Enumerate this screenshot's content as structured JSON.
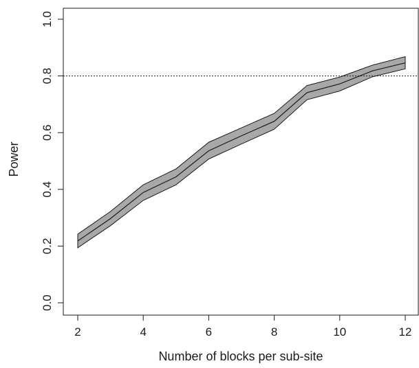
{
  "chart_data": {
    "type": "line",
    "title": "",
    "xlabel": "Number of blocks per sub-site",
    "ylabel": "Power",
    "xlim": [
      2,
      12
    ],
    "ylim": [
      0,
      1
    ],
    "x_ticks": [
      2,
      4,
      6,
      8,
      10,
      12
    ],
    "x_tick_labels": [
      "2",
      "4",
      "6",
      "8",
      "10",
      "12"
    ],
    "y_ticks": [
      0,
      0.2,
      0.4,
      0.6,
      0.8,
      1.0
    ],
    "y_tick_labels": [
      "0.0",
      "0.2",
      "0.4",
      "0.6",
      "0.8",
      "1.0"
    ],
    "grid": false,
    "x": [
      2,
      3,
      4,
      5,
      6,
      7,
      8,
      9,
      10,
      11,
      12
    ],
    "series": [
      {
        "values": [
          0.218,
          0.297,
          0.389,
          0.444,
          0.536,
          0.589,
          0.64,
          0.741,
          0.772,
          0.818,
          0.846
        ],
        "lower": [
          0.194,
          0.272,
          0.361,
          0.416,
          0.507,
          0.56,
          0.612,
          0.716,
          0.747,
          0.797,
          0.825
        ],
        "upper": [
          0.242,
          0.322,
          0.416,
          0.472,
          0.566,
          0.617,
          0.668,
          0.766,
          0.796,
          0.838,
          0.868
        ]
      }
    ],
    "reference_line": {
      "y": 0.8,
      "style": "dotted"
    },
    "colors": {
      "band": "#a8a8a8",
      "line": "#1a1a1a",
      "axis": "#1a1a1a"
    }
  }
}
